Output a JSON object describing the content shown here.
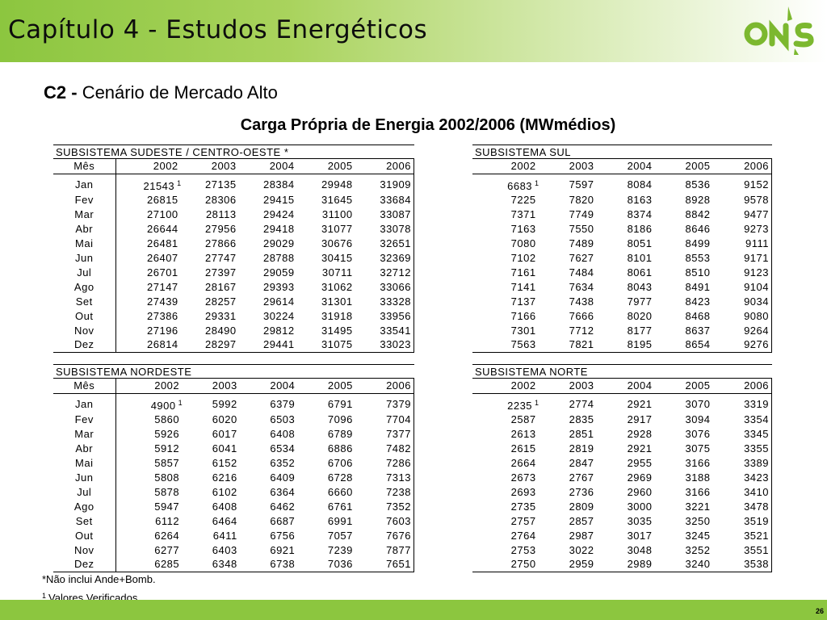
{
  "header": {
    "title": "Capítulo 4 - Estudos Energéticos",
    "logo_text": "ONS",
    "accent_color": "#8cc63f",
    "logo_color": "#7cb82f"
  },
  "subtitle": {
    "code": "C2 -",
    "text": "Cenário de Mercado Alto"
  },
  "table_title": "Carga Própria de Energia 2002/2006 (MWmédios)",
  "month_header": "Mês",
  "years": [
    "2002",
    "2003",
    "2004",
    "2005",
    "2006"
  ],
  "months": [
    "Jan",
    "Fev",
    "Mar",
    "Abr",
    "Mai",
    "Jun",
    "Jul",
    "Ago",
    "Set",
    "Out",
    "Nov",
    "Dez"
  ],
  "blocks": {
    "sudeste": {
      "title": "SUBSISTEMA SUDESTE / CENTRO-OESTE *",
      "rows": [
        [
          "21543",
          "27135",
          "28384",
          "29948",
          "31909"
        ],
        [
          "26815",
          "28306",
          "29415",
          "31645",
          "33684"
        ],
        [
          "27100",
          "28113",
          "29424",
          "31100",
          "33087"
        ],
        [
          "26644",
          "27956",
          "29418",
          "31077",
          "33078"
        ],
        [
          "26481",
          "27866",
          "29029",
          "30676",
          "32651"
        ],
        [
          "26407",
          "27747",
          "28788",
          "30415",
          "32369"
        ],
        [
          "26701",
          "27397",
          "29059",
          "30711",
          "32712"
        ],
        [
          "27147",
          "28167",
          "29393",
          "31062",
          "33066"
        ],
        [
          "27439",
          "28257",
          "29614",
          "31301",
          "33328"
        ],
        [
          "27386",
          "29331",
          "30224",
          "31918",
          "33956"
        ],
        [
          "27196",
          "28490",
          "29812",
          "31495",
          "33541"
        ],
        [
          "26814",
          "28297",
          "29441",
          "31075",
          "33023"
        ]
      ]
    },
    "sul": {
      "title": "SUBSISTEMA SUL",
      "rows": [
        [
          "6683",
          "7597",
          "8084",
          "8536",
          "9152"
        ],
        [
          "7225",
          "7820",
          "8163",
          "8928",
          "9578"
        ],
        [
          "7371",
          "7749",
          "8374",
          "8842",
          "9477"
        ],
        [
          "7163",
          "7550",
          "8186",
          "8646",
          "9273"
        ],
        [
          "7080",
          "7489",
          "8051",
          "8499",
          "9111"
        ],
        [
          "7102",
          "7627",
          "8101",
          "8553",
          "9171"
        ],
        [
          "7161",
          "7484",
          "8061",
          "8510",
          "9123"
        ],
        [
          "7141",
          "7634",
          "8043",
          "8491",
          "9104"
        ],
        [
          "7137",
          "7438",
          "7977",
          "8423",
          "9034"
        ],
        [
          "7166",
          "7666",
          "8020",
          "8468",
          "9080"
        ],
        [
          "7301",
          "7712",
          "8177",
          "8637",
          "9264"
        ],
        [
          "7563",
          "7821",
          "8195",
          "8654",
          "9276"
        ]
      ]
    },
    "nordeste": {
      "title": "SUBSISTEMA NORDESTE",
      "rows": [
        [
          "4900",
          "5992",
          "6379",
          "6791",
          "7379"
        ],
        [
          "5860",
          "6020",
          "6503",
          "7096",
          "7704"
        ],
        [
          "5926",
          "6017",
          "6408",
          "6789",
          "7377"
        ],
        [
          "5912",
          "6041",
          "6534",
          "6886",
          "7482"
        ],
        [
          "5857",
          "6152",
          "6352",
          "6706",
          "7286"
        ],
        [
          "5808",
          "6216",
          "6409",
          "6728",
          "7313"
        ],
        [
          "5878",
          "6102",
          "6364",
          "6660",
          "7238"
        ],
        [
          "5947",
          "6408",
          "6462",
          "6761",
          "7352"
        ],
        [
          "6112",
          "6464",
          "6687",
          "6991",
          "7603"
        ],
        [
          "6264",
          "6411",
          "6756",
          "7057",
          "7676"
        ],
        [
          "6277",
          "6403",
          "6921",
          "7239",
          "7877"
        ],
        [
          "6285",
          "6348",
          "6738",
          "7036",
          "7651"
        ]
      ]
    },
    "norte": {
      "title": "SUBSISTEMA NORTE",
      "rows": [
        [
          "2235",
          "2774",
          "2921",
          "3070",
          "3319"
        ],
        [
          "2587",
          "2835",
          "2917",
          "3094",
          "3354"
        ],
        [
          "2613",
          "2851",
          "2928",
          "3076",
          "3345"
        ],
        [
          "2615",
          "2819",
          "2921",
          "3075",
          "3355"
        ],
        [
          "2664",
          "2847",
          "2955",
          "3166",
          "3389"
        ],
        [
          "2673",
          "2767",
          "2969",
          "3188",
          "3423"
        ],
        [
          "2693",
          "2736",
          "2960",
          "3166",
          "3410"
        ],
        [
          "2735",
          "2809",
          "3000",
          "3221",
          "3478"
        ],
        [
          "2757",
          "2857",
          "3035",
          "3250",
          "3519"
        ],
        [
          "2764",
          "2987",
          "3017",
          "3245",
          "3521"
        ],
        [
          "2753",
          "3022",
          "3048",
          "3252",
          "3551"
        ],
        [
          "2750",
          "2959",
          "2989",
          "3240",
          "3538"
        ]
      ]
    }
  },
  "footnote_marker": "1",
  "notes": {
    "note1": "*Não inclui Ande+Bomb.",
    "note2_mark": "1",
    "note2_text": "Valores Verificados"
  },
  "page_number": "26"
}
